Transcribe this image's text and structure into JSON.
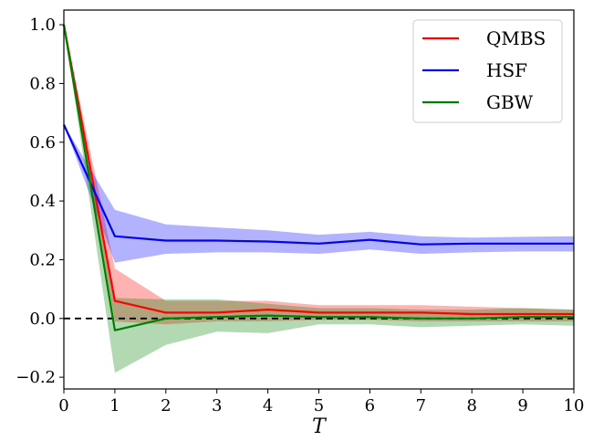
{
  "chart_data": {
    "type": "line",
    "xlabel": "T",
    "ylabel": "",
    "xlim": [
      0,
      10
    ],
    "ylim": [
      -0.24,
      1.05
    ],
    "xticks": [
      0,
      1,
      2,
      3,
      4,
      5,
      6,
      7,
      8,
      9,
      10
    ],
    "xtick_labels": [
      "0",
      "1",
      "2",
      "3",
      "4",
      "5",
      "6",
      "7",
      "8",
      "9",
      "10"
    ],
    "yticks": [
      -0.2,
      0.0,
      0.2,
      0.4,
      0.6,
      0.8,
      1.0
    ],
    "ytick_labels": [
      "−0.2",
      "0.0",
      "0.2",
      "0.4",
      "0.6",
      "0.8",
      "1.0"
    ],
    "legend_position": "top-right",
    "reference_line": {
      "y": 0,
      "style": "dashed",
      "color": "#000000"
    },
    "x": [
      0,
      1,
      2,
      3,
      4,
      5,
      6,
      7,
      8,
      9,
      10
    ],
    "series": [
      {
        "name": "QMBS",
        "color": "#ff0000",
        "values": [
          1.0,
          0.06,
          0.02,
          0.02,
          0.03,
          0.02,
          0.02,
          0.02,
          0.015,
          0.015,
          0.015
        ],
        "lower": [
          1.0,
          -0.01,
          -0.02,
          -0.01,
          -0.01,
          -0.005,
          -0.005,
          -0.01,
          -0.01,
          -0.01,
          -0.01
        ],
        "upper": [
          1.0,
          0.17,
          0.06,
          0.06,
          0.06,
          0.045,
          0.045,
          0.045,
          0.04,
          0.035,
          0.03
        ]
      },
      {
        "name": "HSF",
        "color": "#0000ff",
        "values": [
          0.66,
          0.28,
          0.265,
          0.265,
          0.262,
          0.255,
          0.268,
          0.252,
          0.255,
          0.255,
          0.255
        ],
        "lower": [
          0.66,
          0.19,
          0.22,
          0.225,
          0.225,
          0.22,
          0.235,
          0.22,
          0.225,
          0.228,
          0.228
        ],
        "upper": [
          0.66,
          0.37,
          0.32,
          0.31,
          0.3,
          0.285,
          0.295,
          0.28,
          0.275,
          0.278,
          0.28
        ]
      },
      {
        "name": "GBW",
        "color": "#008000",
        "values": [
          1.0,
          -0.04,
          0.0,
          0.005,
          0.01,
          0.005,
          0.005,
          0.0,
          0.0,
          0.005,
          0.005
        ],
        "lower": [
          1.0,
          -0.185,
          -0.09,
          -0.045,
          -0.05,
          -0.02,
          -0.02,
          -0.03,
          -0.025,
          -0.02,
          -0.025
        ],
        "upper": [
          1.0,
          0.07,
          0.065,
          0.065,
          0.05,
          0.035,
          0.035,
          0.03,
          0.03,
          0.035,
          0.03
        ]
      }
    ]
  }
}
